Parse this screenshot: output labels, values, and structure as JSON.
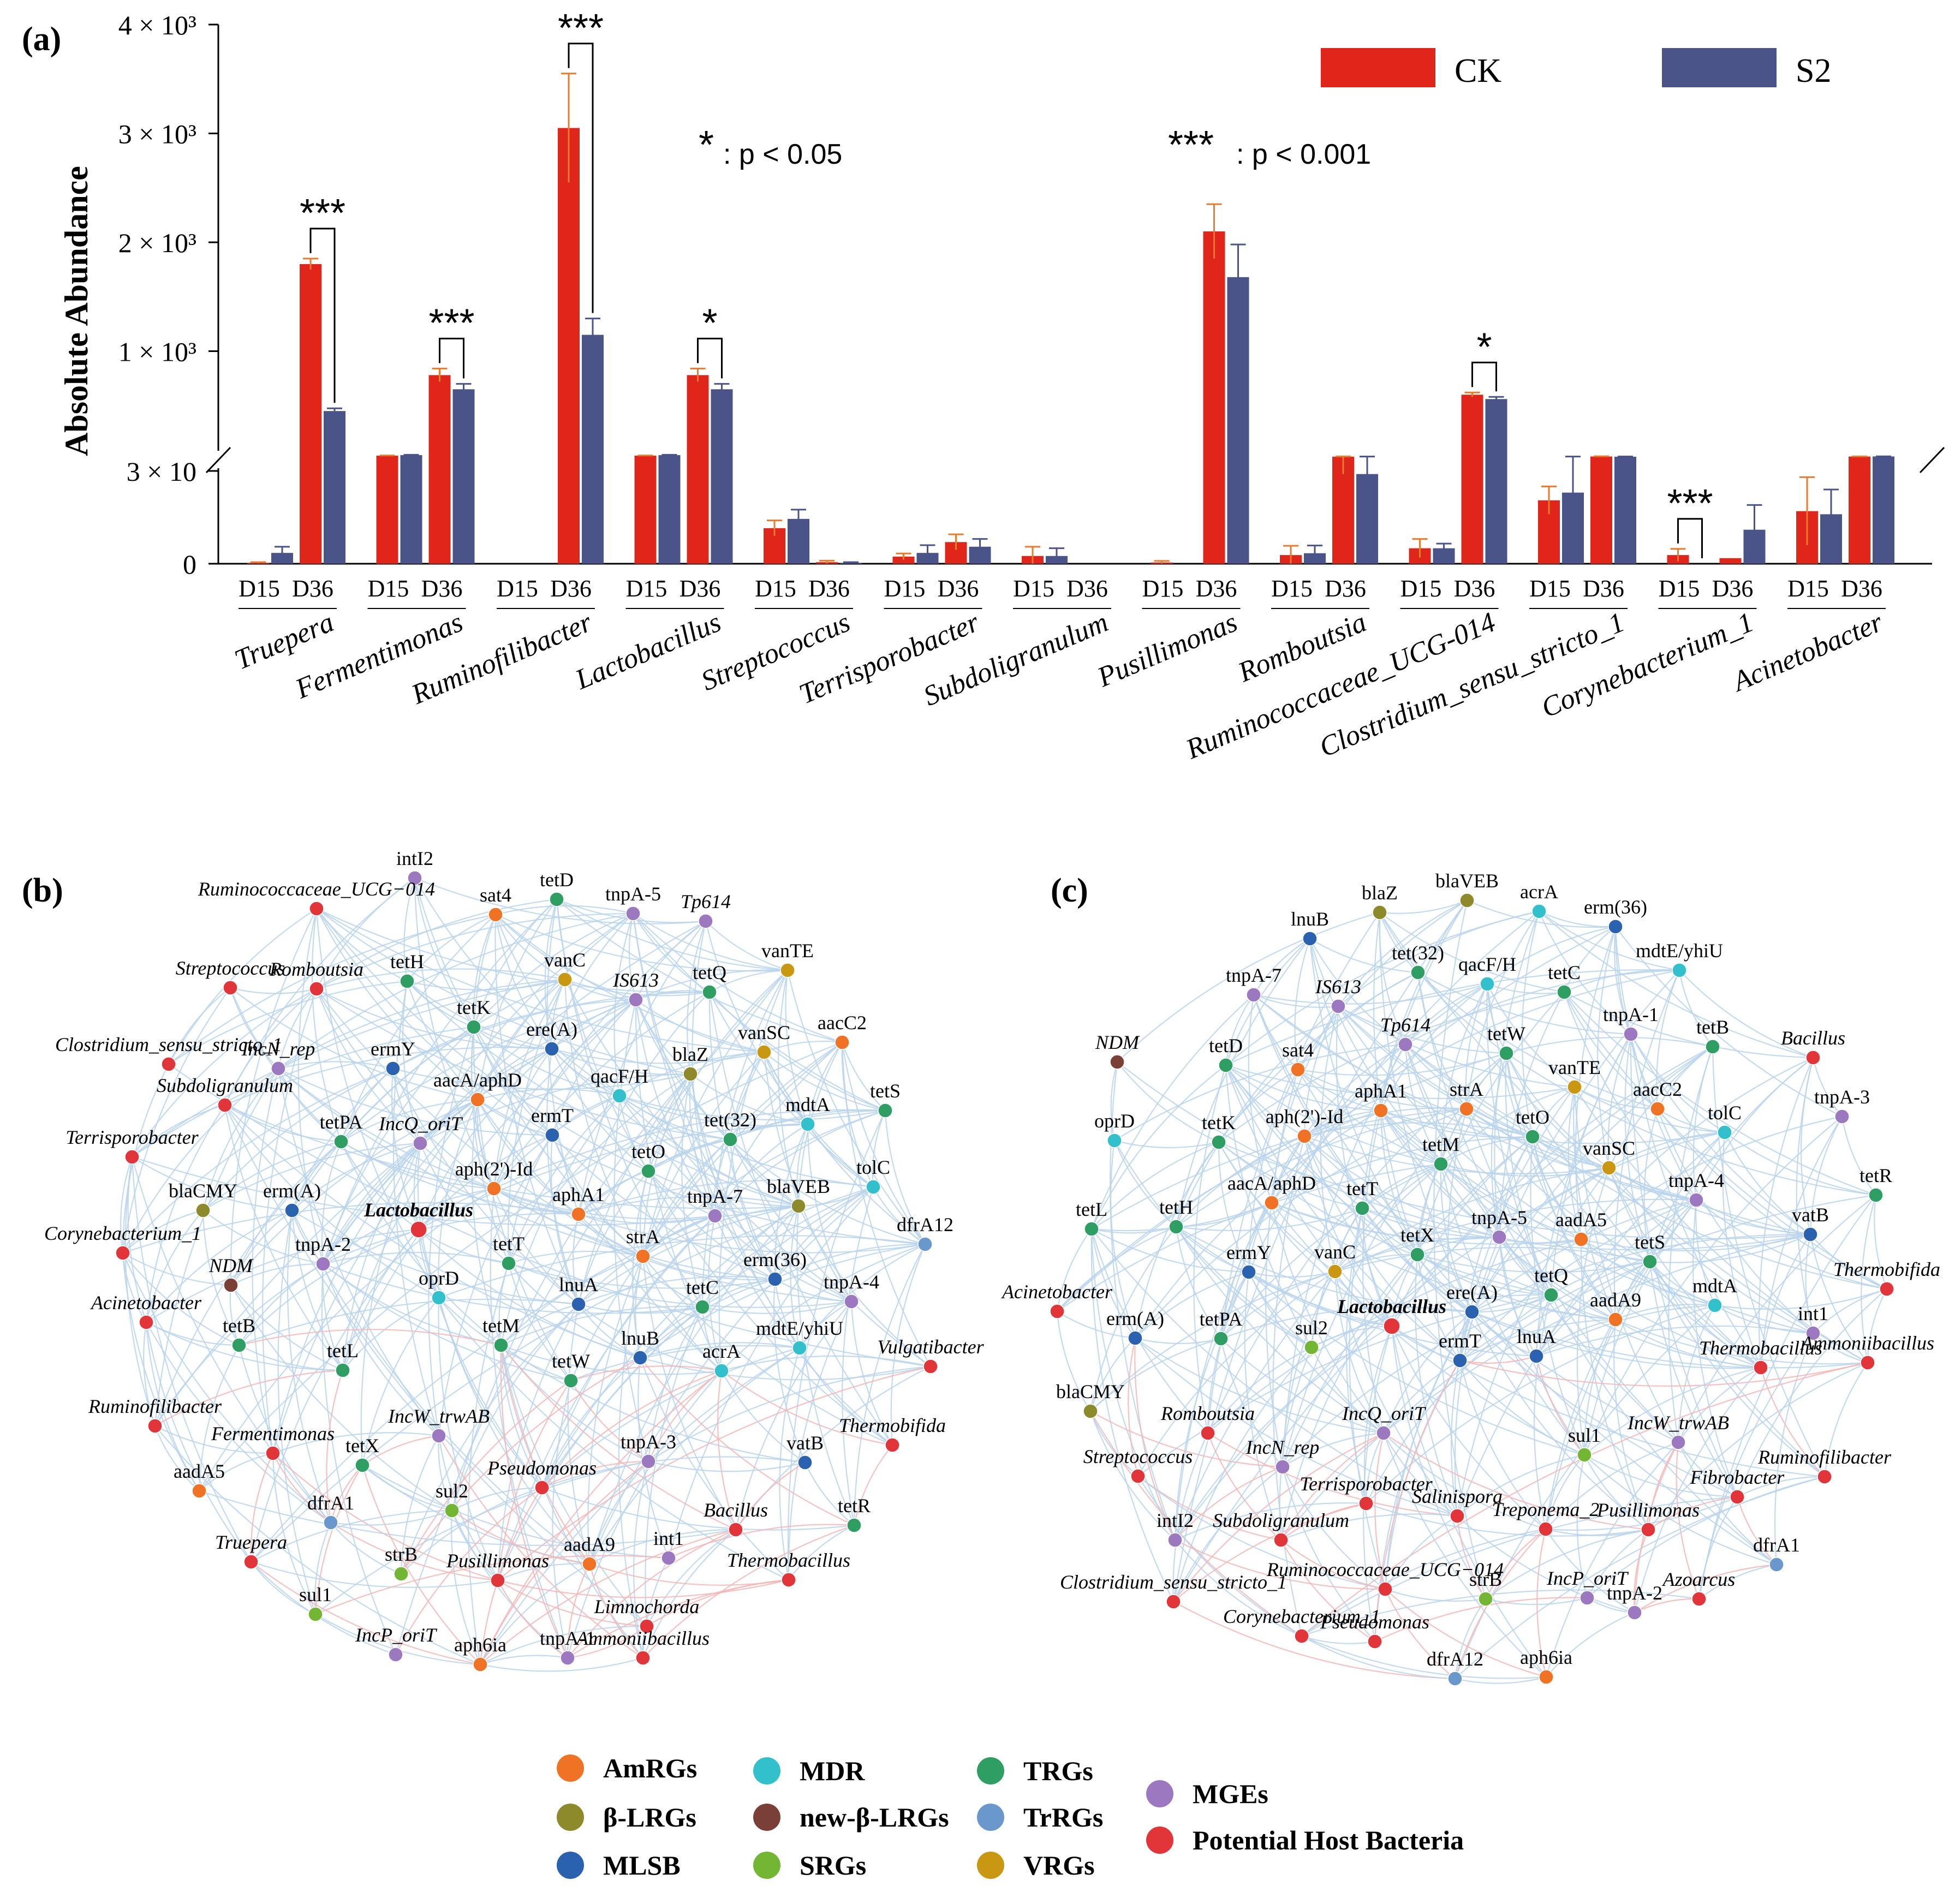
{
  "colors": {
    "ck": "#e0261b",
    "s2": "#4a5488",
    "err_ck": "#e87b2d",
    "edge_blue": "#b8d4ec",
    "edge_red": "#f4b6b6",
    "categories": {
      "AmRGs": "#f07224",
      "beta-LRGs": "#8c8a2a",
      "MLSB": "#2a62b0",
      "MDR": "#32c0cc",
      "new-beta-LRGs": "#7a4038",
      "SRGs": "#72b634",
      "TRGs": "#2f9e62",
      "TrRGs": "#6a98cc",
      "VRGs": "#c99712",
      "MGEs": "#9c78c0",
      "Potential Host Bacteria": "#e2353a"
    }
  },
  "panel_labels": {
    "a": "(a)",
    "b": "(b)",
    "c": "(c)"
  },
  "annotations": {
    "p05_star": "*",
    "p05_text": ": p < 0.05",
    "p001_star": "***",
    "p001_text": ": p < 0.001",
    "ylabel": "Absolute Abundance"
  },
  "chart_data": [
    {
      "type": "bar",
      "title": "(a)",
      "xlabel": "",
      "ylabel": "Absolute Abundance",
      "broken_axis": true,
      "lower_range": [
        0,
        30
      ],
      "upper_range": [
        0,
        4000
      ],
      "y_tick_labels": [
        "0",
        "3 × 10",
        "1 × 10³",
        "2 × 10³",
        "3 × 10³",
        "4 × 10³"
      ],
      "legend": [
        "CK",
        "S2"
      ],
      "legend_position": "top-right",
      "x_sub_labels": [
        "D15",
        "D36"
      ],
      "genera": [
        "Truepera",
        "Fermentimonas",
        "Ruminofilibacter",
        "Lactobacillus",
        "Streptococcus",
        "Terrisporobacter",
        "Subdoligranulum",
        "Pusillimonas",
        "Romboutsia",
        "Ruminococcaceae_UCG-014",
        "Clostridium_sensu_stricto_1",
        "Corynebacterium_1",
        "Acinetobacter"
      ],
      "series": [
        {
          "name": "CK D15",
          "values": [
            0.3,
            40,
            0,
            40,
            11.5,
            2.3,
            2.5,
            0.4,
            2.8,
            5.0,
            20.5,
            2.8,
            17
          ]
        },
        {
          "name": "S2 D15",
          "values": [
            3.5,
            45,
            0,
            45,
            14.5,
            3.5,
            2.5,
            0,
            3.4,
            5.0,
            23,
            0,
            16
          ]
        },
        {
          "name": "CK D36",
          "values": [
            1800,
            780,
            3050,
            780,
            0.5,
            7.0,
            0,
            2100,
            31,
            600,
            32.5,
            1.8,
            32
          ]
        },
        {
          "name": "S2 D36",
          "values": [
            450,
            650,
            1150,
            650,
            0.3,
            5.5,
            0,
            1680,
            29,
            560,
            30.5,
            11,
            33
          ]
        }
      ],
      "errors": [
        [
          0.2,
          2,
          0,
          2,
          2.5,
          1.0,
          3.0,
          0.5,
          3.0,
          3.0,
          4.5,
          2.0,
          11
        ],
        [
          2.0,
          3,
          0,
          3,
          3.0,
          2.5,
          2.5,
          0,
          2.5,
          1.5,
          9.0,
          0,
          8
        ],
        [
          50,
          60,
          500,
          60,
          0.5,
          2.5,
          0,
          250,
          2.0,
          20,
          2.0,
          0,
          1.5
        ],
        [
          25,
          50,
          150,
          50,
          0.2,
          2.5,
          0,
          300,
          3.0,
          20,
          2.0,
          8,
          1.0
        ]
      ],
      "significance": [
        {
          "genus": "Truepera",
          "mark": "***"
        },
        {
          "genus": "Fermentimonas",
          "mark": "***"
        },
        {
          "genus": "Ruminofilibacter",
          "mark": "***"
        },
        {
          "genus": "Lactobacillus",
          "mark": "*"
        },
        {
          "genus": "Ruminococcaceae_UCG-014",
          "mark": "*"
        },
        {
          "genus": "Corynebacterium_1",
          "mark": "***"
        }
      ]
    }
  ],
  "networks": [
    {
      "id": "b",
      "label": "(b)",
      "nodes": [
        {
          "label": "intI2",
          "cat": "MGEs"
        },
        {
          "label": "Ruminococcaceae_UCG−014",
          "cat": "Potential Host Bacteria"
        },
        {
          "label": "tetD",
          "cat": "TRGs"
        },
        {
          "label": "Tp614",
          "cat": "MGEs"
        },
        {
          "label": "tnpA-5",
          "cat": "MGEs"
        },
        {
          "label": "sat4",
          "cat": "AmRGs"
        },
        {
          "label": "vanTE",
          "cat": "VRGs"
        },
        {
          "label": "Streptococcus",
          "cat": "Potential Host Bacteria"
        },
        {
          "label": "tetH",
          "cat": "TRGs"
        },
        {
          "label": "vanC",
          "cat": "VRGs"
        },
        {
          "label": "tetQ",
          "cat": "TRGs"
        },
        {
          "label": "Romboutsia",
          "cat": "Potential Host Bacteria"
        },
        {
          "label": "IS613",
          "cat": "MGEs"
        },
        {
          "label": "tetK",
          "cat": "TRGs"
        },
        {
          "label": "aacC2",
          "cat": "AmRGs"
        },
        {
          "label": "Clostridium_sensu_stricto_1",
          "cat": "Potential Host Bacteria"
        },
        {
          "label": "ere(A)",
          "cat": "MLSB"
        },
        {
          "label": "vanSC",
          "cat": "VRGs"
        },
        {
          "label": "ermY",
          "cat": "MLSB"
        },
        {
          "label": "IncN_rep",
          "cat": "MGEs"
        },
        {
          "label": "blaZ",
          "cat": "beta-LRGs"
        },
        {
          "label": "qacF/H",
          "cat": "MDR"
        },
        {
          "label": "aacA/aphD",
          "cat": "AmRGs"
        },
        {
          "label": "Subdoligranulum",
          "cat": "Potential Host Bacteria"
        },
        {
          "label": "mdtA",
          "cat": "MDR"
        },
        {
          "label": "tetS",
          "cat": "TRGs"
        },
        {
          "label": "ermT",
          "cat": "MLSB"
        },
        {
          "label": "IncQ_oriT",
          "cat": "MGEs"
        },
        {
          "label": "tet(32)",
          "cat": "TRGs"
        },
        {
          "label": "tetPA",
          "cat": "TRGs"
        },
        {
          "label": "Terrisporobacter",
          "cat": "Potential Host Bacteria"
        },
        {
          "label": "tetO",
          "cat": "TRGs"
        },
        {
          "label": "aph(2')-Id",
          "cat": "AmRGs"
        },
        {
          "label": "blaVEB",
          "cat": "beta-LRGs"
        },
        {
          "label": "tolC",
          "cat": "MDR"
        },
        {
          "label": "erm(A)",
          "cat": "MLSB"
        },
        {
          "label": "aphA1",
          "cat": "AmRGs"
        },
        {
          "label": "tnpA-7",
          "cat": "MGEs"
        },
        {
          "label": "Lactobacillus",
          "cat": "Potential Host Bacteria"
        },
        {
          "label": "blaCMY",
          "cat": "beta-LRGs"
        },
        {
          "label": "dfrA12",
          "cat": "TrRGs"
        },
        {
          "label": "Corynebacterium_1",
          "cat": "Potential Host Bacteria"
        },
        {
          "label": "strA",
          "cat": "AmRGs"
        },
        {
          "label": "tetT",
          "cat": "TRGs"
        },
        {
          "label": "tnpA-2",
          "cat": "MGEs"
        },
        {
          "label": "erm(36)",
          "cat": "MLSB"
        },
        {
          "label": "NDM",
          "cat": "new-beta-LRGs"
        },
        {
          "label": "oprD",
          "cat": "MDR"
        },
        {
          "label": "lnuA",
          "cat": "MLSB"
        },
        {
          "label": "tetC",
          "cat": "TRGs"
        },
        {
          "label": "tnpA-4",
          "cat": "MGEs"
        },
        {
          "label": "Acinetobacter",
          "cat": "Potential Host Bacteria"
        },
        {
          "label": "tetM",
          "cat": "TRGs"
        },
        {
          "label": "mdtE/yhiU",
          "cat": "MDR"
        },
        {
          "label": "tetB",
          "cat": "TRGs"
        },
        {
          "label": "lnuB",
          "cat": "MLSB"
        },
        {
          "label": "Vulgatibacter",
          "cat": "Potential Host Bacteria"
        },
        {
          "label": "tetL",
          "cat": "TRGs"
        },
        {
          "label": "acrA",
          "cat": "MDR"
        },
        {
          "label": "tetW",
          "cat": "TRGs"
        },
        {
          "label": "Ruminofilibacter",
          "cat": "Potential Host Bacteria"
        },
        {
          "label": "IncW_trwAB",
          "cat": "MGEs"
        },
        {
          "label": "Fermentimonas",
          "cat": "Potential Host Bacteria"
        },
        {
          "label": "tnpA-3",
          "cat": "MGEs"
        },
        {
          "label": "Thermobifida",
          "cat": "Potential Host Bacteria"
        },
        {
          "label": "tetX",
          "cat": "TRGs"
        },
        {
          "label": "vatB",
          "cat": "MLSB"
        },
        {
          "label": "aadA5",
          "cat": "AmRGs"
        },
        {
          "label": "Pseudomonas",
          "cat": "Potential Host Bacteria"
        },
        {
          "label": "dfrA1",
          "cat": "TrRGs"
        },
        {
          "label": "sul2",
          "cat": "SRGs"
        },
        {
          "label": "Bacillus",
          "cat": "Potential Host Bacteria"
        },
        {
          "label": "tetR",
          "cat": "TRGs"
        },
        {
          "label": "Truepera",
          "cat": "Potential Host Bacteria"
        },
        {
          "label": "strB",
          "cat": "SRGs"
        },
        {
          "label": "aadA9",
          "cat": "AmRGs"
        },
        {
          "label": "int1",
          "cat": "MGEs"
        },
        {
          "label": "Pusillimonas",
          "cat": "Potential Host Bacteria"
        },
        {
          "label": "Thermobacillus",
          "cat": "Potential Host Bacteria"
        },
        {
          "label": "sul1",
          "cat": "SRGs"
        },
        {
          "label": "tnpA-1",
          "cat": "MGEs"
        },
        {
          "label": "Limnochorda",
          "cat": "Potential Host Bacteria"
        },
        {
          "label": "aph6ia",
          "cat": "AmRGs"
        },
        {
          "label": "IncP_oriT",
          "cat": "MGEs"
        },
        {
          "label": "Ammoniibacillus",
          "cat": "Potential Host Bacteria"
        }
      ]
    },
    {
      "id": "c",
      "label": "(c)",
      "nodes": [
        {
          "label": "blaZ",
          "cat": "beta-LRGs"
        },
        {
          "label": "blaVEB",
          "cat": "beta-LRGs"
        },
        {
          "label": "lnuB",
          "cat": "MLSB"
        },
        {
          "label": "acrA",
          "cat": "MDR"
        },
        {
          "label": "erm(36)",
          "cat": "MLSB"
        },
        {
          "label": "tet(32)",
          "cat": "TRGs"
        },
        {
          "label": "tnpA-7",
          "cat": "MGEs"
        },
        {
          "label": "IS613",
          "cat": "MGEs"
        },
        {
          "label": "qacF/H",
          "cat": "MDR"
        },
        {
          "label": "mdtE/yhiU",
          "cat": "MDR"
        },
        {
          "label": "tetC",
          "cat": "TRGs"
        },
        {
          "label": "NDM",
          "cat": "new-beta-LRGs"
        },
        {
          "label": "Tp614",
          "cat": "MGEs"
        },
        {
          "label": "tnpA-1",
          "cat": "MGEs"
        },
        {
          "label": "Bacillus",
          "cat": "Potential Host Bacteria"
        },
        {
          "label": "sat4",
          "cat": "AmRGs"
        },
        {
          "label": "tetB",
          "cat": "TRGs"
        },
        {
          "label": "tetD",
          "cat": "TRGs"
        },
        {
          "label": "tetW",
          "cat": "TRGs"
        },
        {
          "label": "aphA1",
          "cat": "AmRGs"
        },
        {
          "label": "strA",
          "cat": "AmRGs"
        },
        {
          "label": "vanTE",
          "cat": "VRGs"
        },
        {
          "label": "aacC2",
          "cat": "AmRGs"
        },
        {
          "label": "tnpA-3",
          "cat": "MGEs"
        },
        {
          "label": "oprD",
          "cat": "MDR"
        },
        {
          "label": "tolC",
          "cat": "MDR"
        },
        {
          "label": "tetO",
          "cat": "TRGs"
        },
        {
          "label": "tetK",
          "cat": "TRGs"
        },
        {
          "label": "aph(2')-Id",
          "cat": "AmRGs"
        },
        {
          "label": "tetM",
          "cat": "TRGs"
        },
        {
          "label": "vanSC",
          "cat": "VRGs"
        },
        {
          "label": "tnpA-4",
          "cat": "MGEs"
        },
        {
          "label": "tetR",
          "cat": "TRGs"
        },
        {
          "label": "tetL",
          "cat": "TRGs"
        },
        {
          "label": "tetH",
          "cat": "TRGs"
        },
        {
          "label": "aacA/aphD",
          "cat": "AmRGs"
        },
        {
          "label": "tetT",
          "cat": "TRGs"
        },
        {
          "label": "tnpA-5",
          "cat": "MGEs"
        },
        {
          "label": "aadA5",
          "cat": "AmRGs"
        },
        {
          "label": "tetX",
          "cat": "TRGs"
        },
        {
          "label": "tetS",
          "cat": "TRGs"
        },
        {
          "label": "vatB",
          "cat": "MLSB"
        },
        {
          "label": "ermY",
          "cat": "MLSB"
        },
        {
          "label": "vanC",
          "cat": "VRGs"
        },
        {
          "label": "ere(A)",
          "cat": "MLSB"
        },
        {
          "label": "tetQ",
          "cat": "TRGs"
        },
        {
          "label": "mdtA",
          "cat": "MDR"
        },
        {
          "label": "Thermobifida",
          "cat": "Potential Host Bacteria"
        },
        {
          "label": "Acinetobacter",
          "cat": "Potential Host Bacteria"
        },
        {
          "label": "int1",
          "cat": "MGEs"
        },
        {
          "label": "Lactobacillus",
          "cat": "Potential Host Bacteria"
        },
        {
          "label": "aadA9",
          "cat": "AmRGs"
        },
        {
          "label": "erm(A)",
          "cat": "MLSB"
        },
        {
          "label": "tetPA",
          "cat": "TRGs"
        },
        {
          "label": "sul2",
          "cat": "SRGs"
        },
        {
          "label": "ermT",
          "cat": "MLSB"
        },
        {
          "label": "lnuA",
          "cat": "MLSB"
        },
        {
          "label": "Thermobacillus",
          "cat": "Potential Host Bacteria"
        },
        {
          "label": "Ammoniibacillus",
          "cat": "Potential Host Bacteria"
        },
        {
          "label": "blaCMY",
          "cat": "beta-LRGs"
        },
        {
          "label": "Romboutsia",
          "cat": "Potential Host Bacteria"
        },
        {
          "label": "IncQ_oriT",
          "cat": "MGEs"
        },
        {
          "label": "IncW_trwAB",
          "cat": "MGEs"
        },
        {
          "label": "sul1",
          "cat": "SRGs"
        },
        {
          "label": "Ruminofilibacter",
          "cat": "Potential Host Bacteria"
        },
        {
          "label": "IncN_rep",
          "cat": "MGEs"
        },
        {
          "label": "Streptococcus",
          "cat": "Potential Host Bacteria"
        },
        {
          "label": "Terrisporobacter",
          "cat": "Potential Host Bacteria"
        },
        {
          "label": "Salinispora",
          "cat": "Potential Host Bacteria"
        },
        {
          "label": "Treponema_2",
          "cat": "Potential Host Bacteria"
        },
        {
          "label": "Fibrobacter",
          "cat": "Potential Host Bacteria"
        },
        {
          "label": "intI2",
          "cat": "MGEs"
        },
        {
          "label": "Subdoligranulum",
          "cat": "Potential Host Bacteria"
        },
        {
          "label": "Pusillimonas",
          "cat": "Potential Host Bacteria"
        },
        {
          "label": "Ruminococcaceae_UCG−014",
          "cat": "Potential Host Bacteria"
        },
        {
          "label": "dfrA1",
          "cat": "TrRGs"
        },
        {
          "label": "strB",
          "cat": "SRGs"
        },
        {
          "label": "IncP_oriT",
          "cat": "MGEs"
        },
        {
          "label": "Azoarcus",
          "cat": "Potential Host Bacteria"
        },
        {
          "label": "Clostridium_sensu_stricto_1",
          "cat": "Potential Host Bacteria"
        },
        {
          "label": "Corynebacterium_1",
          "cat": "Potential Host Bacteria"
        },
        {
          "label": "Pseudomonas",
          "cat": "Potential Host Bacteria"
        },
        {
          "label": "tnpA-2",
          "cat": "MGEs"
        },
        {
          "label": "dfrA12",
          "cat": "TrRGs"
        },
        {
          "label": "aph6ia",
          "cat": "AmRGs"
        }
      ]
    }
  ],
  "legend": [
    {
      "label": "AmRGs",
      "key": "AmRGs"
    },
    {
      "label": "β-LRGs",
      "key": "beta-LRGs"
    },
    {
      "label": "MLSB",
      "key": "MLSB"
    },
    {
      "label": "MDR",
      "key": "MDR"
    },
    {
      "label": "new-β-LRGs",
      "key": "new-beta-LRGs"
    },
    {
      "label": "SRGs",
      "key": "SRGs"
    },
    {
      "label": "TRGs",
      "key": "TRGs"
    },
    {
      "label": "TrRGs",
      "key": "TrRGs"
    },
    {
      "label": "VRGs",
      "key": "VRGs"
    },
    {
      "label": "MGEs",
      "key": "MGEs"
    },
    {
      "label": "Potential Host Bacteria",
      "key": "Potential Host Bacteria"
    }
  ]
}
